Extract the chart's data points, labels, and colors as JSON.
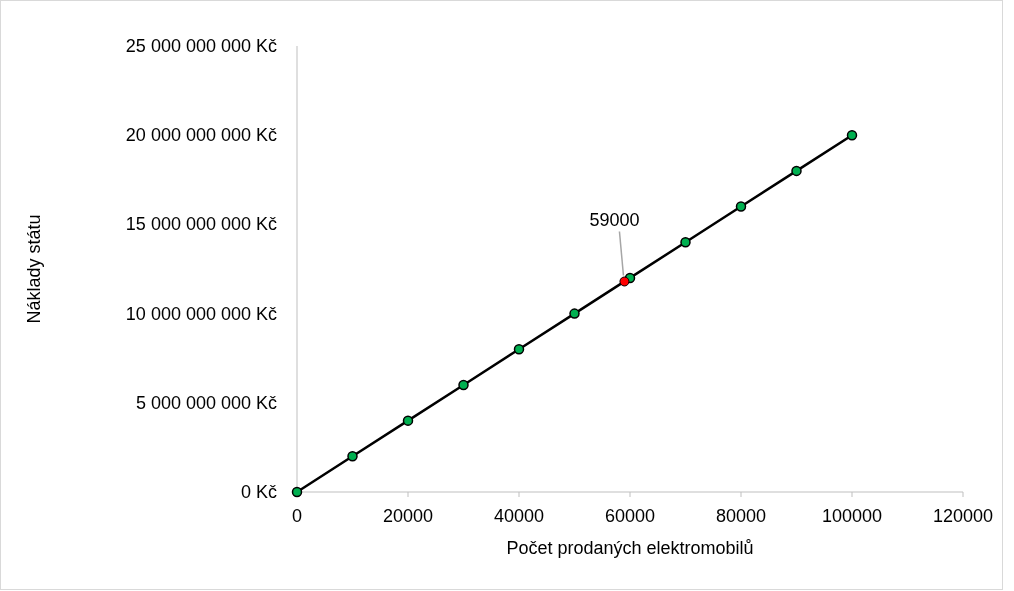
{
  "chart_data": {
    "type": "line",
    "xlabel": "Počet prodaných elektromobilů",
    "ylabel": "Náklady státu",
    "series": [
      {
        "color": "#000000",
        "colors": [
          "#00b050",
          "#00b050",
          "#00b050",
          "#00b050",
          "#00b050",
          "#00b050",
          "#00b050",
          "#00b050",
          "#00b050",
          "#00b050",
          "#00b050"
        ],
        "x": [
          0,
          10000,
          20000,
          30000,
          40000,
          50000,
          60000,
          70000,
          80000,
          90000,
          100000
        ],
        "values": [
          0,
          2000000000,
          4000000000,
          6000000000,
          8000000000,
          10000000000,
          12000000000,
          14000000000,
          16000000000,
          18000000000,
          20000000000
        ]
      },
      {
        "type": "scatter",
        "color": "#ff0000",
        "x": [
          59000
        ],
        "values": [
          11800000000
        ]
      }
    ],
    "xlim": [
      0,
      120000
    ],
    "xticks": [
      0,
      20000,
      40000,
      60000,
      80000,
      100000,
      120000
    ],
    "ylim": [
      0,
      25000000000
    ],
    "yticks": [
      {
        "value": 0,
        "label": "0 Kč"
      },
      {
        "value": 5000000000,
        "label": "5 000 000 000 Kč"
      },
      {
        "value": 10000000000,
        "label": "10 000 000 000 Kč"
      },
      {
        "value": 15000000000,
        "label": "15 000 000 000 Kč"
      },
      {
        "value": 20000000000,
        "label": "20 000 000 000 Kč"
      },
      {
        "value": 25000000000,
        "label": "25 000 000 000 Kč"
      }
    ],
    "annotations": [
      {
        "text": "59000",
        "x": 59000,
        "y": 11800000000
      }
    ],
    "marker": "circle",
    "line_style": "solid",
    "grid": false
  }
}
